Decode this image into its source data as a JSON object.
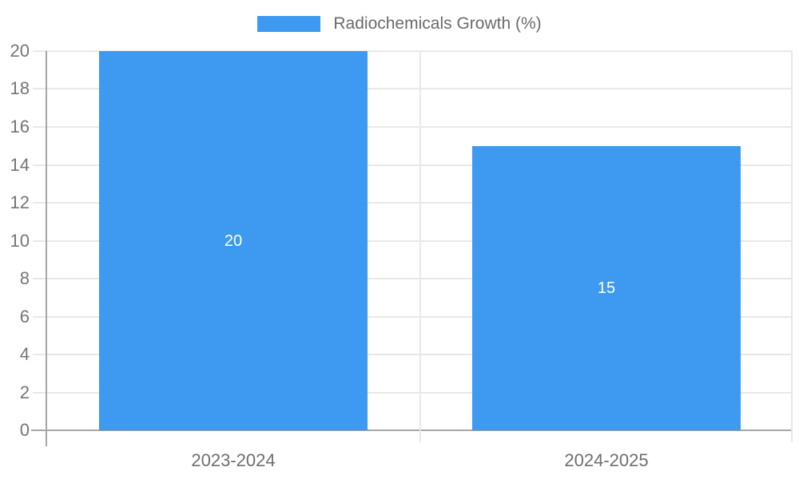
{
  "chart_data": {
    "type": "bar",
    "title": "",
    "legend": {
      "position": "top"
    },
    "categories": [
      "2023-2024",
      "2024-2025"
    ],
    "series": [
      {
        "name": "Radiochemicals Growth (%)",
        "values": [
          20,
          15
        ]
      }
    ],
    "bar_value_labels": [
      "20",
      "15"
    ],
    "ylabel": "",
    "xlabel": "",
    "ylim": [
      0,
      20
    ],
    "yticks": [
      0,
      2,
      4,
      6,
      8,
      10,
      12,
      14,
      16,
      18,
      20
    ],
    "grid": true,
    "colors": {
      "bar": "#3d9af0",
      "grid_line": "#e8e8e8",
      "axis_line": "#a6a6a6",
      "tick_text": "#757575",
      "category_text": "#6e6e6e",
      "legend_text": "#6b6b6b",
      "bar_label_text": "#ffffff",
      "background": "#ffffff"
    }
  }
}
